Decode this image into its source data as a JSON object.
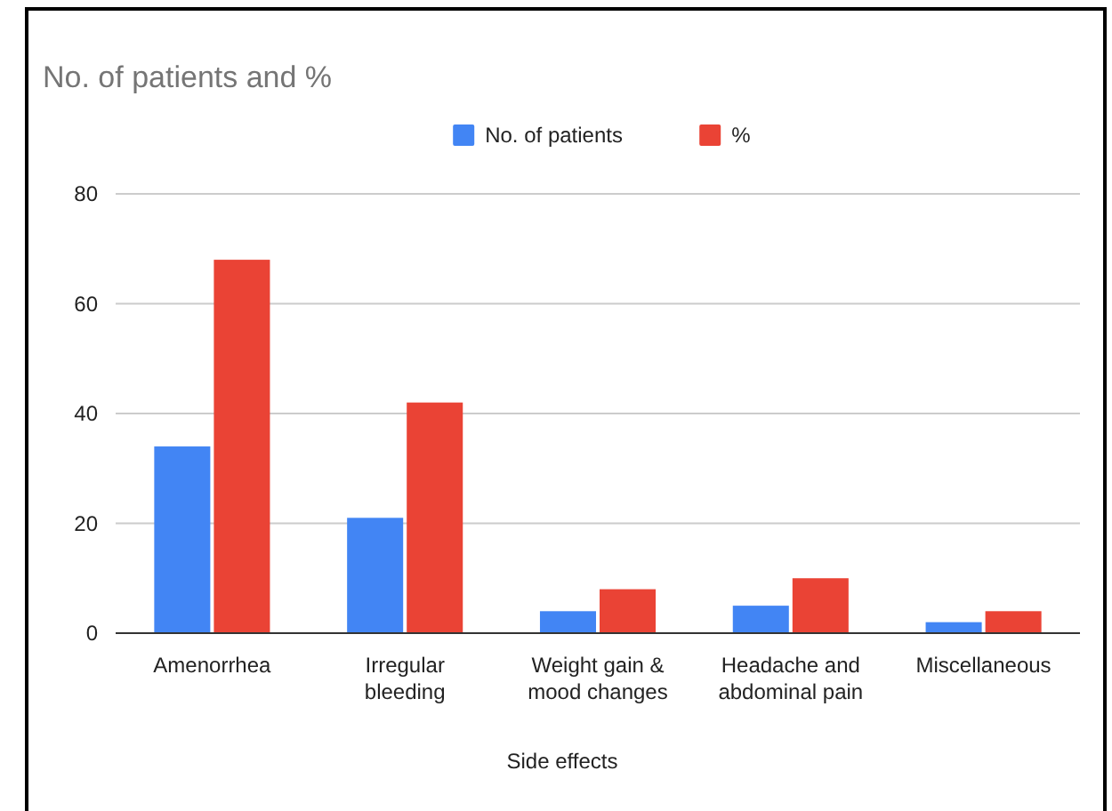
{
  "chart_data": {
    "type": "bar",
    "title": "No. of patients and %",
    "xlabel": "Side effects",
    "categories": [
      "Amenorrhea",
      "Irregular bleeding",
      "Weight gain & mood changes",
      "Headache and abdominal pain",
      "Miscellaneous"
    ],
    "series": [
      {
        "name": "No. of patients",
        "color": "#4285f4",
        "values": [
          34,
          21,
          4,
          5,
          2
        ]
      },
      {
        "name": "%",
        "color": "#ea4335",
        "values": [
          68,
          42,
          8,
          10,
          4
        ]
      }
    ],
    "ylim": [
      0,
      80
    ],
    "yticks": [
      0,
      20,
      40,
      60,
      80
    ],
    "grid": "y",
    "legend": "top"
  }
}
